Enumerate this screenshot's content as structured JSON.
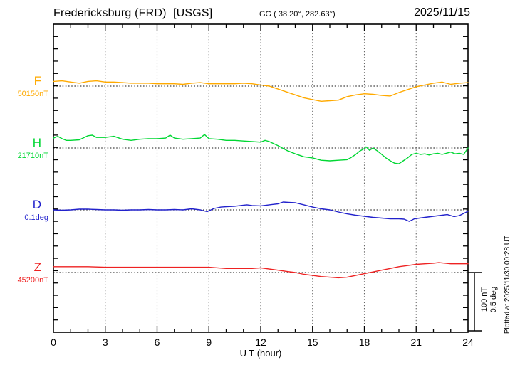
{
  "header": {
    "station": "Fredericksburg (FRD)  [USGS]",
    "coordinates": "GG ( 38.20°, 282.63°)",
    "date": "2025/11/15"
  },
  "channels": [
    {
      "label": "F",
      "baseline_label": "50150nT",
      "color": "#FFAA00"
    },
    {
      "label": "H",
      "baseline_label": "21710nT",
      "color": "#00D733"
    },
    {
      "label": "D",
      "baseline_label": "0.1deg",
      "color": "#2222CC"
    },
    {
      "label": "Z",
      "baseline_label": "45200nT",
      "color": "#EE2222"
    }
  ],
  "xaxis": {
    "label": "U T (hour)",
    "tick_labels": [
      "0",
      "3",
      "6",
      "9",
      "12",
      "15",
      "18",
      "21",
      "24"
    ],
    "tick_hours": [
      0,
      3,
      6,
      9,
      12,
      15,
      18,
      21,
      24
    ]
  },
  "scale_bar": {
    "nt_label": "100 nT",
    "deg_label": "0.5 deg"
  },
  "footer": {
    "plotted_at": "Plotted at 2025/11/30 00:28 UT"
  },
  "colors": {
    "grid": "#666666",
    "baseline_dots": "#444444",
    "frame": "#000000",
    "background": "#FFFFFF"
  },
  "chart_data": {
    "type": "line",
    "title": "Fredericksburg (FRD) [USGS] magnetogram",
    "date": "2025/11/15",
    "xlabel": "U T (hour)",
    "x_range": [
      0,
      24
    ],
    "grid": "dotted vertical lines every 3 hours; dotted horizontal baseline per channel",
    "legend_position": "left margin (channel letters with baseline values)",
    "scale": {
      "nT_per_bar": 100,
      "deg_per_bar": 0.5
    },
    "series": [
      {
        "name": "F",
        "unit": "nT",
        "baseline": 50150,
        "x": [
          0,
          0.5,
          1,
          1.5,
          2,
          2.5,
          3,
          3.5,
          4,
          4.5,
          5,
          5.5,
          6,
          6.5,
          7,
          7.5,
          8,
          8.5,
          9,
          9.5,
          10,
          10.5,
          11,
          11.5,
          12,
          12.5,
          13,
          13.5,
          14,
          14.5,
          15,
          15.5,
          16,
          16.5,
          17,
          17.5,
          18,
          18.5,
          19,
          19.5,
          20,
          20.5,
          21,
          21.5,
          22,
          22.5,
          23,
          23.5,
          24
        ],
        "values": [
          50158,
          50159,
          50157,
          50155,
          50158,
          50159,
          50157,
          50157,
          50156,
          50155,
          50155,
          50155,
          50154,
          50154,
          50154,
          50153,
          50155,
          50156,
          50154,
          50154,
          50154,
          50154,
          50155,
          50154,
          50152,
          50150,
          50145,
          50140,
          50135,
          50130,
          50127,
          50124,
          50125,
          50126,
          50132,
          50135,
          50137,
          50136,
          50134,
          50133,
          50139,
          50144,
          50149,
          50152,
          50155,
          50157,
          50153,
          50155,
          50156
        ]
      },
      {
        "name": "H",
        "unit": "nT",
        "baseline": 21710,
        "x": [
          0,
          0.25,
          0.5,
          0.75,
          1,
          1.5,
          2,
          2.25,
          2.5,
          3,
          3.5,
          4,
          4.5,
          5,
          5.5,
          6,
          6.5,
          6.75,
          7,
          7.5,
          8,
          8.5,
          8.75,
          9,
          9.5,
          10,
          10.5,
          11,
          11.5,
          12,
          12.25,
          12.5,
          13,
          13.5,
          14,
          14.5,
          15,
          15.5,
          16,
          16.5,
          17,
          17.25,
          17.5,
          17.75,
          18,
          18.1,
          18.3,
          18.5,
          18.75,
          19,
          19.25,
          19.5,
          19.75,
          20,
          20.25,
          20.5,
          20.75,
          21,
          21.25,
          21.5,
          21.75,
          22,
          22.25,
          22.5,
          23,
          23.25,
          23.5,
          23.75,
          24
        ],
        "values": [
          21727,
          21730,
          21726,
          21723,
          21723,
          21724,
          21731,
          21732,
          21728,
          21728,
          21730,
          21725,
          21723,
          21725,
          21726,
          21726,
          21727,
          21732,
          21727,
          21725,
          21726,
          21727,
          21733,
          21726,
          21725,
          21723,
          21723,
          21722,
          21721,
          21720,
          21723,
          21721,
          21714,
          21706,
          21700,
          21695,
          21693,
          21689,
          21688,
          21689,
          21690,
          21694,
          21699,
          21705,
          21709,
          21712,
          21706,
          21710,
          21705,
          21699,
          21693,
          21688,
          21684,
          21683,
          21688,
          21693,
          21699,
          21701,
          21699,
          21700,
          21698,
          21700,
          21701,
          21699,
          21703,
          21700,
          21701,
          21699,
          21710
        ]
      },
      {
        "name": "D",
        "unit": "deg",
        "baseline": 0.1,
        "x": [
          0,
          0.5,
          1,
          1.5,
          2,
          2.5,
          3,
          3.5,
          4,
          4.5,
          5,
          5.5,
          6,
          6.5,
          7,
          7.5,
          8,
          8.5,
          8.9,
          9.3,
          9.7,
          10,
          10.5,
          11,
          11.2,
          11.5,
          12,
          12.5,
          13,
          13.3,
          13.6,
          14,
          14.5,
          15,
          15.5,
          16,
          16.5,
          17,
          17.5,
          18,
          18.5,
          19,
          19.5,
          20,
          20.3,
          20.6,
          20.9,
          21.5,
          22,
          22.5,
          22.8,
          23.2,
          23.5,
          24
        ],
        "values": [
          0.1,
          0.097,
          0.1,
          0.106,
          0.106,
          0.103,
          0.1,
          0.1,
          0.097,
          0.1,
          0.1,
          0.103,
          0.1,
          0.1,
          0.103,
          0.1,
          0.109,
          0.1,
          0.085,
          0.112,
          0.124,
          0.127,
          0.131,
          0.14,
          0.143,
          0.137,
          0.134,
          0.143,
          0.152,
          0.167,
          0.164,
          0.161,
          0.143,
          0.124,
          0.109,
          0.1,
          0.082,
          0.066,
          0.054,
          0.045,
          0.036,
          0.03,
          0.024,
          0.024,
          0.021,
          0.002,
          0.024,
          0.036,
          0.045,
          0.054,
          0.06,
          0.042,
          0.051,
          0.088
        ]
      },
      {
        "name": "Z",
        "unit": "nT",
        "baseline": 45200,
        "x": [
          0,
          1,
          2,
          3,
          4,
          5,
          6,
          7,
          8,
          9,
          9.5,
          10,
          10.5,
          11,
          11.5,
          12,
          12.5,
          13,
          13.5,
          14,
          14.5,
          15,
          15.5,
          16,
          16.5,
          17,
          17.5,
          18,
          18.5,
          19,
          19.5,
          20,
          20.5,
          21,
          21.5,
          22,
          22.3,
          22.7,
          23,
          23.5,
          24
        ],
        "values": [
          45210,
          45210,
          45210,
          45209,
          45209,
          45209,
          45209,
          45209,
          45209,
          45209,
          45208,
          45207,
          45207,
          45207,
          45207,
          45208,
          45206,
          45204,
          45202,
          45200,
          45197,
          45195,
          45193,
          45192,
          45191,
          45192,
          45195,
          45198,
          45201,
          45204,
          45207,
          45210,
          45212,
          45214,
          45215,
          45216,
          45217,
          45216,
          45215,
          45215,
          45215
        ]
      }
    ]
  }
}
